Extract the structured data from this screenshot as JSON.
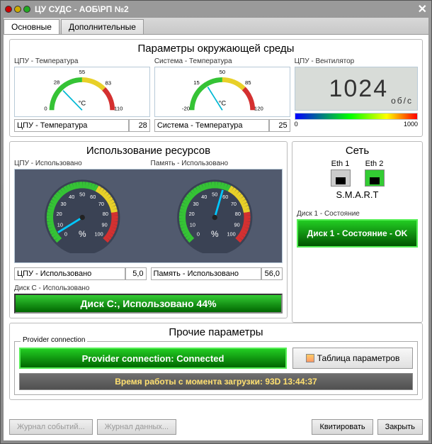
{
  "window": {
    "title": "ЦУ СУДС - АОБ\\РП №2"
  },
  "tabs": {
    "main": "Основные",
    "extra": "Дополнительные"
  },
  "env": {
    "title": "Параметры окружающей среды",
    "cpu_temp": {
      "label": "ЦПУ - Температура",
      "unit": "°C",
      "value": 28,
      "ticks": [
        0,
        28,
        55,
        83,
        110
      ],
      "reading_label": "ЦПУ - Температура",
      "arc": {
        "green": [
          0,
          55
        ],
        "yellow": [
          55,
          83
        ],
        "red": [
          83,
          110
        ]
      },
      "needle_color": "#00b8d4"
    },
    "sys_temp": {
      "label": "Система - Температура",
      "unit": "°C",
      "value": 25,
      "ticks": [
        -20,
        15,
        50,
        85,
        120
      ],
      "reading_label": "Система - Температура",
      "arc": {
        "green": [
          -20,
          50
        ],
        "yellow": [
          50,
          85
        ],
        "red": [
          85,
          120
        ]
      },
      "needle_color": "#00b8d4"
    },
    "fan": {
      "label": "ЦПУ - Вентилятор",
      "value": "1024",
      "unit": "об/с",
      "scale": {
        "min": 0,
        "max": 1000
      }
    }
  },
  "res": {
    "title": "Использование ресурсов",
    "cpu": {
      "label": "ЦПУ - Использовано",
      "value": "5,0",
      "reading_label": "ЦПУ - Использовано",
      "unit": "%",
      "ticks": [
        0,
        10,
        20,
        30,
        40,
        50,
        60,
        70,
        80,
        90,
        100
      ],
      "pointer": 5,
      "colors": {
        "green": [
          0,
          60
        ],
        "yellow": [
          60,
          80
        ],
        "red": [
          80,
          100
        ]
      },
      "bg": "#515a6e",
      "needle": "#00c8ff"
    },
    "mem": {
      "label": "Память - Использовано",
      "value": "56,0",
      "reading_label": "Память - Использовано",
      "unit": "%",
      "ticks": [
        0,
        10,
        20,
        30,
        40,
        50,
        60,
        70,
        80,
        90,
        100
      ],
      "pointer": 56,
      "colors": {
        "green": [
          0,
          60
        ],
        "yellow": [
          60,
          80
        ],
        "red": [
          80,
          100
        ]
      },
      "bg": "#515a6e",
      "needle": "#00c8ff"
    },
    "disk": {
      "label": "Диск C - Использовано",
      "text": "Диск C:, Использовано 44%",
      "pct": 44
    }
  },
  "net": {
    "title": "Сеть",
    "eth": [
      {
        "name": "Eth 1",
        "on": false
      },
      {
        "name": "Eth 2",
        "on": true
      }
    ],
    "smart": "S.M.A.R.T",
    "disk1": {
      "label": "Диск 1 - Состояние",
      "text": "Диск 1 - Состояние - OK"
    }
  },
  "other": {
    "title": "Прочие параметры",
    "provider": {
      "legend": "Provider connection",
      "text": "Provider connection: Connected"
    },
    "table_btn": "Таблица параметров",
    "uptime": "Время работы с момента загрузки: 93D 13:44:37"
  },
  "footer": {
    "log_events": "Журнал событий...",
    "log_data": "Журнал данных...",
    "ack": "Квитировать",
    "close": "Закрыть"
  },
  "palette": {
    "green": "#35c335",
    "yellow": "#e8d028",
    "red": "#d43030"
  }
}
